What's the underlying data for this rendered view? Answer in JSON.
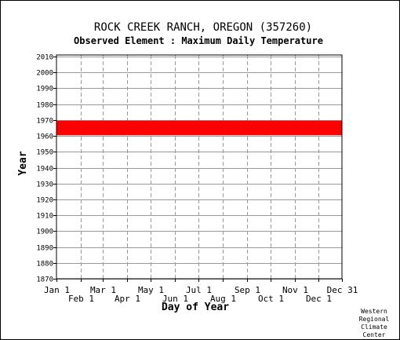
{
  "title": "ROCK CREEK RANCH, OREGON   (357260)",
  "subtitle": "Observed Element : Maximum Daily Temperature",
  "credit": [
    "Western",
    "Regional",
    "Climate",
    "Center"
  ],
  "colors": {
    "data": "#ff0000",
    "grid": "#999999",
    "axis": "#000000",
    "background": "#ffffff"
  },
  "chart_data": {
    "type": "scatter",
    "title": "ROCK CREEK RANCH, OREGON   (357260)",
    "subtitle": "Observed Element : Maximum Daily Temperature",
    "xlabel": "Day of Year",
    "ylabel": "Year",
    "x_ticks_upper": [
      "Jan 1",
      "Mar 1",
      "May 1",
      "Jul 1",
      "Sep 1",
      "Nov 1",
      "Dec 31"
    ],
    "x_ticks_lower": [
      "Feb 1",
      "Apr 1",
      "Jun 1",
      "Aug 1",
      "Oct 1",
      "Dec 1"
    ],
    "y_ticks": [
      1870,
      1880,
      1890,
      1900,
      1910,
      1920,
      1930,
      1940,
      1950,
      1960,
      1970,
      1980,
      1990,
      2000,
      2010
    ],
    "ylim": [
      1870,
      2011
    ],
    "xlim": [
      "Jan 1",
      "Dec 31"
    ],
    "grid": true,
    "series": [
      {
        "type": "range",
        "years": [
          1961,
          1969
        ],
        "start": "Jan 1",
        "end": "Dec 31"
      }
    ]
  }
}
